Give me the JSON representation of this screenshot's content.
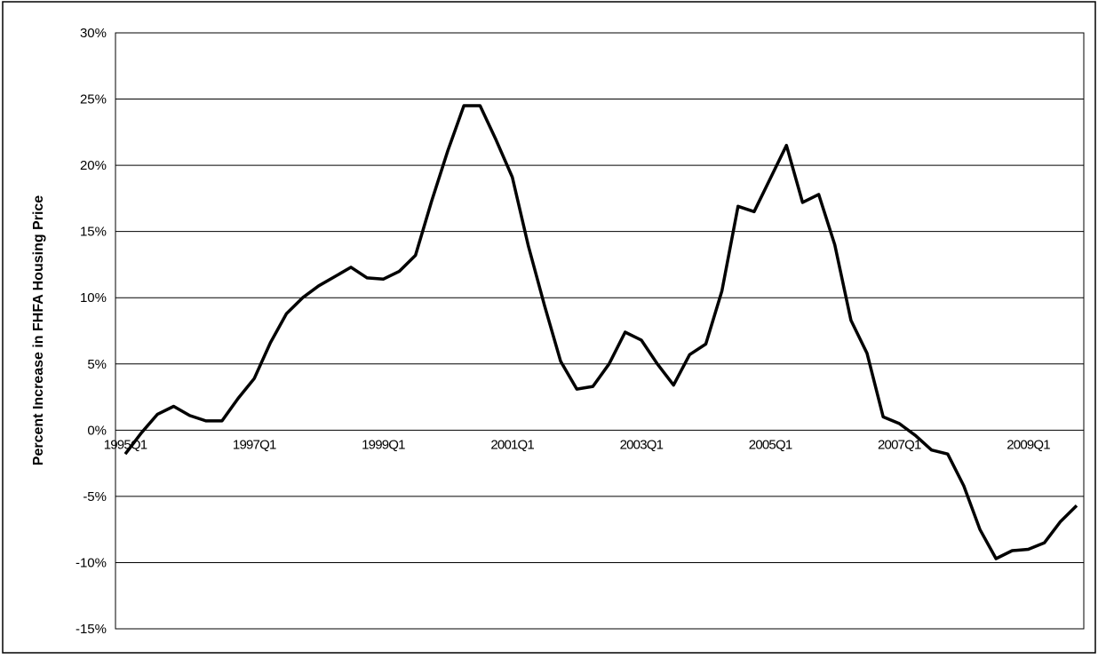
{
  "chart_data": {
    "type": "line",
    "title": "",
    "xlabel": "",
    "ylabel": "Percent Increase in FHFA Housing Price",
    "ylim": [
      -15,
      30
    ],
    "y_ticks": [
      -15,
      -10,
      -5,
      0,
      5,
      10,
      15,
      20,
      25,
      30
    ],
    "y_tick_labels": [
      "-15%",
      "-10%",
      "-5%",
      "0%",
      "5%",
      "10%",
      "15%",
      "20%",
      "25%",
      "30%"
    ],
    "x_tick_labels": [
      "1995Q1",
      "1997Q1",
      "1999Q1",
      "2001Q1",
      "2003Q1",
      "2005Q1",
      "2007Q1",
      "2009Q1"
    ],
    "grid": "horizontal",
    "legend": "none",
    "line_color": "#000000",
    "series": [
      {
        "x": [
          "1995Q1",
          "1995Q2",
          "1995Q3",
          "1995Q4",
          "1996Q1",
          "1996Q2",
          "1996Q3",
          "1996Q4",
          "1997Q1",
          "1997Q2",
          "1997Q3",
          "1997Q4",
          "1998Q1",
          "1998Q2",
          "1998Q3",
          "1998Q4",
          "1999Q1",
          "1999Q2",
          "1999Q3",
          "1999Q4",
          "2000Q1",
          "2000Q2",
          "2000Q3",
          "2000Q4",
          "2001Q1",
          "2001Q2",
          "2001Q3",
          "2001Q4",
          "2002Q1",
          "2002Q2",
          "2002Q3",
          "2002Q4",
          "2003Q1",
          "2003Q2",
          "2003Q3",
          "2003Q4",
          "2004Q1",
          "2004Q2",
          "2004Q3",
          "2004Q4",
          "2005Q1",
          "2005Q2",
          "2005Q3",
          "2005Q4",
          "2006Q1",
          "2006Q2",
          "2006Q3",
          "2006Q4",
          "2007Q1",
          "2007Q2",
          "2007Q3",
          "2007Q4",
          "2008Q1",
          "2008Q2",
          "2008Q3",
          "2008Q4",
          "2009Q1",
          "2009Q2",
          "2009Q3",
          "2009Q4"
        ],
        "values": [
          -1.8,
          -0.2,
          1.2,
          1.8,
          1.1,
          0.7,
          0.7,
          2.4,
          3.9,
          6.6,
          8.8,
          10.0,
          10.9,
          11.6,
          12.3,
          11.5,
          11.4,
          12.0,
          13.2,
          17.3,
          21.1,
          24.5,
          24.5,
          21.9,
          19.1,
          13.9,
          9.4,
          5.2,
          3.1,
          3.3,
          5.0,
          7.4,
          6.8,
          5.0,
          3.4,
          5.7,
          6.5,
          10.5,
          16.9,
          16.5,
          19.0,
          21.5,
          17.2,
          17.8,
          14.0,
          8.3,
          5.8,
          1.0,
          0.5,
          -0.4,
          -1.5,
          -1.8,
          -4.2,
          -7.5,
          -9.7,
          -9.1,
          -9.0,
          -8.5,
          -6.9,
          -5.7
        ]
      }
    ]
  }
}
